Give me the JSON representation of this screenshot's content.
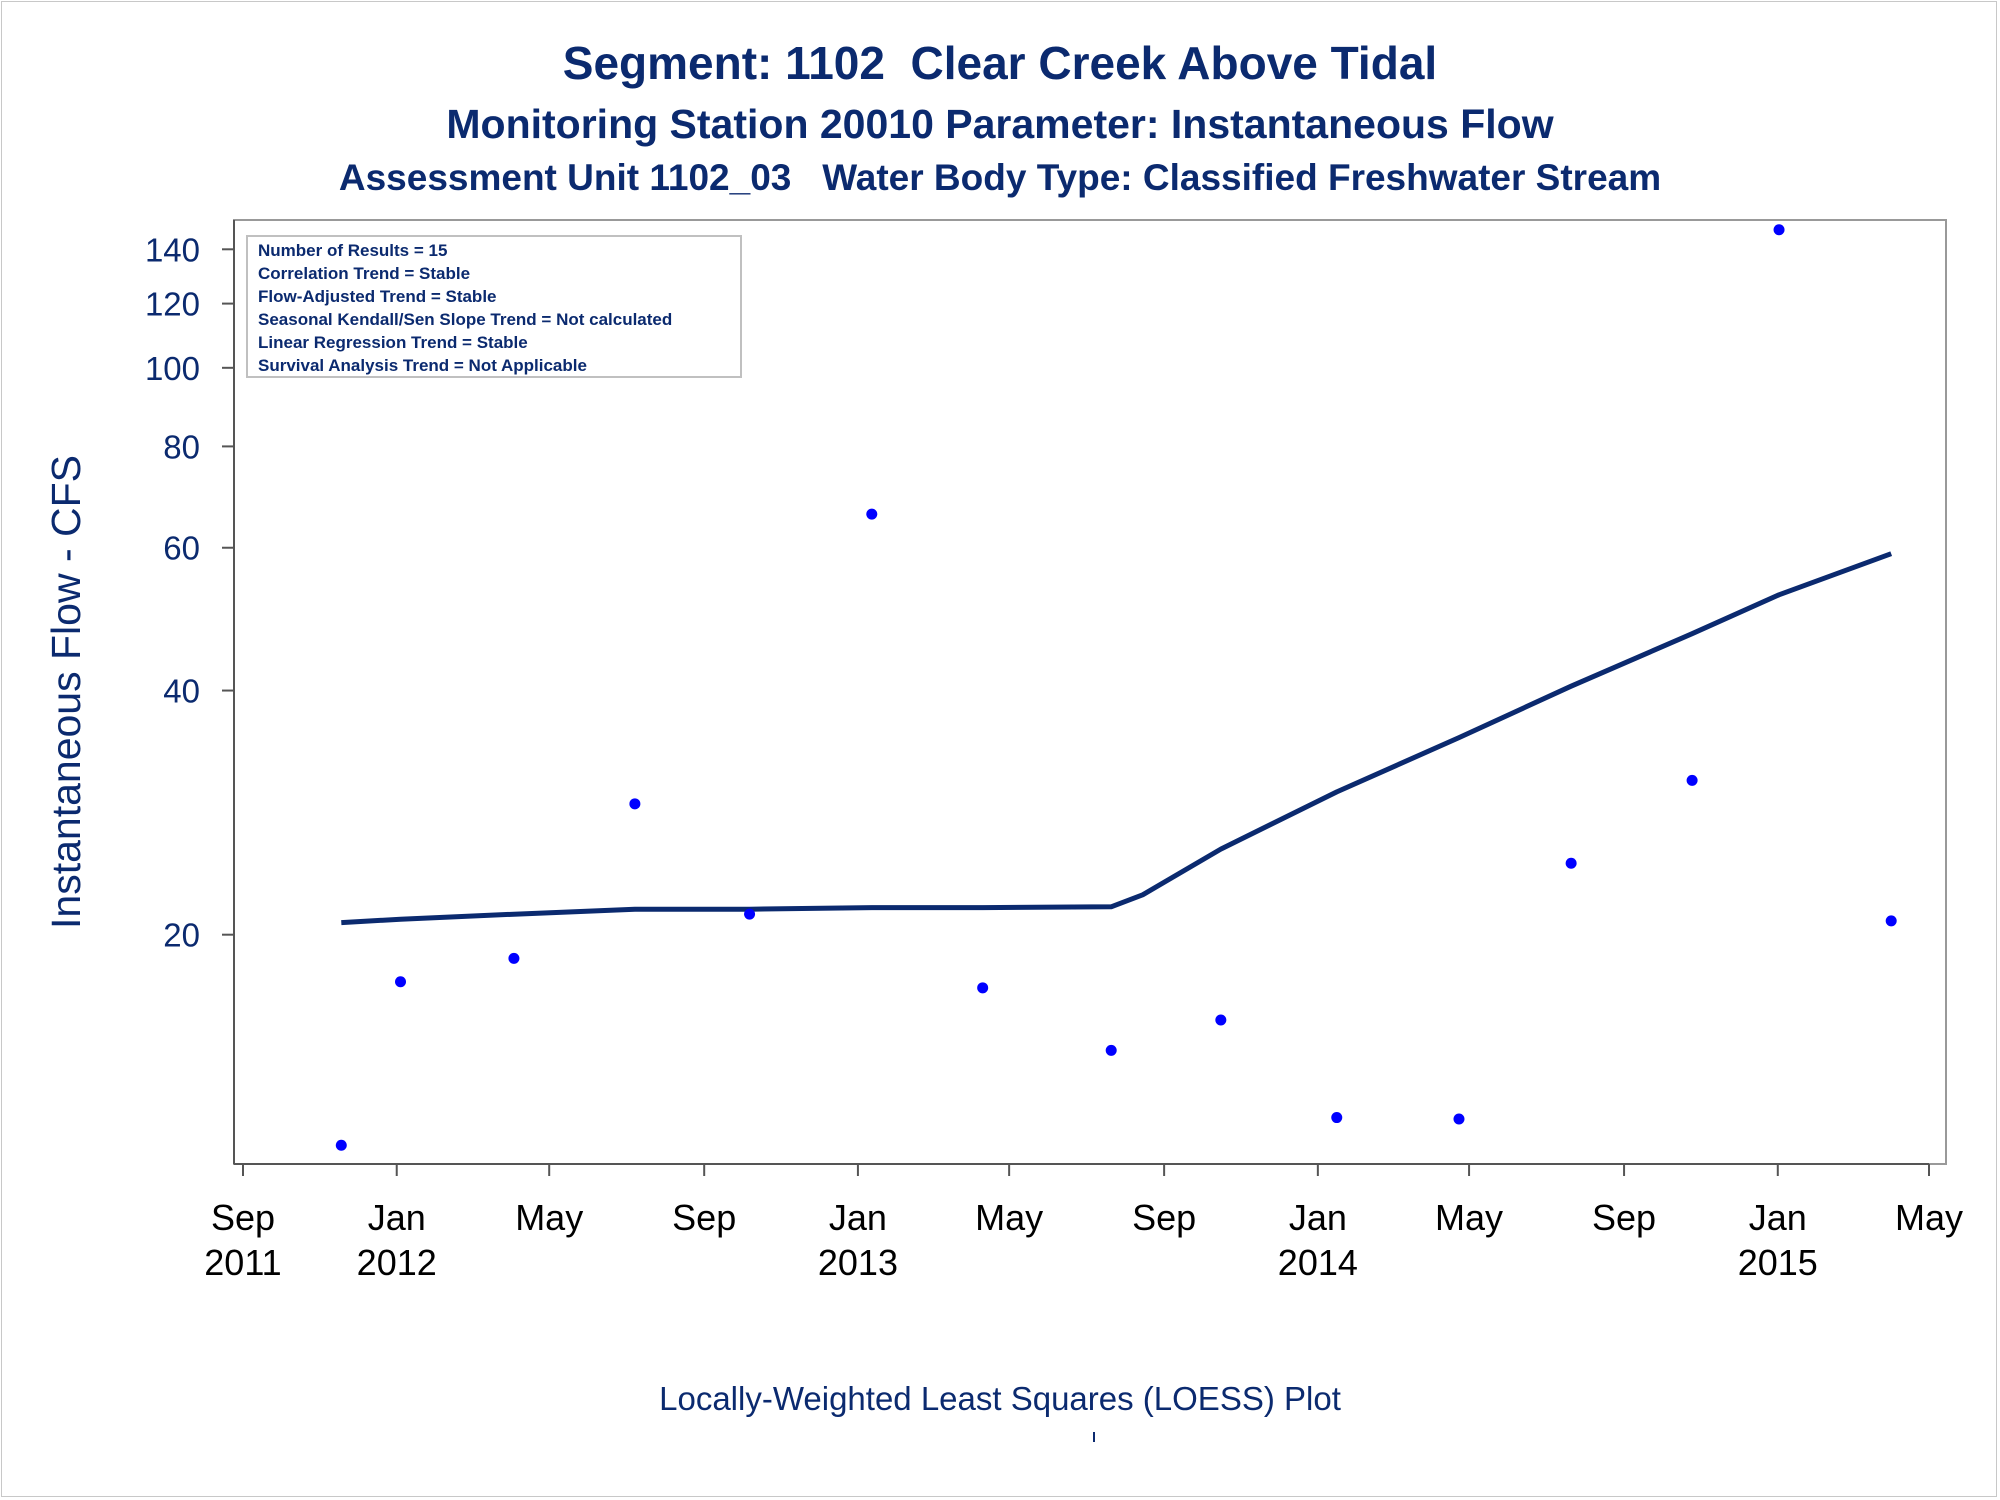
{
  "titles": {
    "line1": "Segment: 1102  Clear Creek Above Tidal",
    "line2": "Monitoring Station 20010 Parameter: Instantaneous Flow",
    "line3": "Assessment Unit 1102_03   Water Body Type: Classified Freshwater Stream"
  },
  "footnote": "Locally-Weighted Least Squares (LOESS) Plot",
  "colors": {
    "text": "#0b2a6f",
    "points": "#0000ff",
    "loess_line": "#0b2a6f",
    "axis": "#555555",
    "frame": "#999999"
  },
  "chart_data": {
    "type": "scatter",
    "ylabel": "Instantaneous Flow - CFS",
    "xlabel": "",
    "y_scale": "log",
    "ylim": [
      10.7,
      150
    ],
    "xlim": [
      "2011-09-01",
      "2015-05-01"
    ],
    "y_ticks": [
      20,
      40,
      60,
      80,
      100,
      120,
      140
    ],
    "x_ticks": [
      {
        "date": "2011-09-01",
        "label": [
          "Sep",
          "2011"
        ]
      },
      {
        "date": "2012-01-01",
        "label": [
          "Jan",
          "2012"
        ]
      },
      {
        "date": "2012-05-01",
        "label": [
          "May",
          ""
        ]
      },
      {
        "date": "2012-09-01",
        "label": [
          "Sep",
          ""
        ]
      },
      {
        "date": "2013-01-01",
        "label": [
          "Jan",
          "2013"
        ]
      },
      {
        "date": "2013-05-01",
        "label": [
          "May",
          ""
        ]
      },
      {
        "date": "2013-09-01",
        "label": [
          "Sep",
          ""
        ]
      },
      {
        "date": "2014-01-01",
        "label": [
          "Jan",
          "2014"
        ]
      },
      {
        "date": "2014-05-01",
        "label": [
          "May",
          ""
        ]
      },
      {
        "date": "2014-09-01",
        "label": [
          "Sep",
          ""
        ]
      },
      {
        "date": "2015-01-01",
        "label": [
          "Jan",
          "2015"
        ]
      },
      {
        "date": "2015-05-01",
        "label": [
          "May",
          ""
        ]
      }
    ],
    "grid": false,
    "inset_legend": {
      "placement": "top-left",
      "lines": [
        "Number of Results = 15",
        "Correlation Trend = Stable",
        "Flow-Adjusted Trend = Stable",
        "Seasonal Kendall/Sen Slope Trend = Not calculated",
        "Linear Regression Trend = Stable",
        "Survival Analysis Trend = Not Applicable"
      ]
    },
    "series": [
      {
        "kind": "points",
        "points": [
          {
            "x": "2011-11-18",
            "y": 11
          },
          {
            "x": "2012-01-04",
            "y": 17.5
          },
          {
            "x": "2012-04-03",
            "y": 18.7
          },
          {
            "x": "2012-07-08",
            "y": 29
          },
          {
            "x": "2012-10-07",
            "y": 21.2
          },
          {
            "x": "2013-01-12",
            "y": 66
          },
          {
            "x": "2013-04-10",
            "y": 17.2
          },
          {
            "x": "2013-07-21",
            "y": 14.4
          },
          {
            "x": "2013-10-16",
            "y": 15.7
          },
          {
            "x": "2014-01-16",
            "y": 11.9
          },
          {
            "x": "2014-04-23",
            "y": 11.85
          },
          {
            "x": "2014-07-21",
            "y": 24.5
          },
          {
            "x": "2014-10-25",
            "y": 31
          },
          {
            "x": "2015-01-02",
            "y": 148
          },
          {
            "x": "2015-04-01",
            "y": 20.8
          }
        ]
      },
      {
        "kind": "loess",
        "points": [
          {
            "x": "2011-11-18",
            "y": 20.7
          },
          {
            "x": "2012-01-04",
            "y": 20.9
          },
          {
            "x": "2012-04-03",
            "y": 21.2
          },
          {
            "x": "2012-07-08",
            "y": 21.5
          },
          {
            "x": "2012-10-07",
            "y": 21.5
          },
          {
            "x": "2013-01-12",
            "y": 21.6
          },
          {
            "x": "2013-04-10",
            "y": 21.6
          },
          {
            "x": "2013-07-21",
            "y": 21.65
          },
          {
            "x": "2013-08-15",
            "y": 22.4
          },
          {
            "x": "2013-10-16",
            "y": 25.5
          },
          {
            "x": "2014-01-16",
            "y": 30
          },
          {
            "x": "2014-04-23",
            "y": 35
          },
          {
            "x": "2014-07-21",
            "y": 40.5
          },
          {
            "x": "2014-10-25",
            "y": 47
          },
          {
            "x": "2015-01-02",
            "y": 52.5
          },
          {
            "x": "2015-04-01",
            "y": 59
          }
        ]
      }
    ]
  }
}
